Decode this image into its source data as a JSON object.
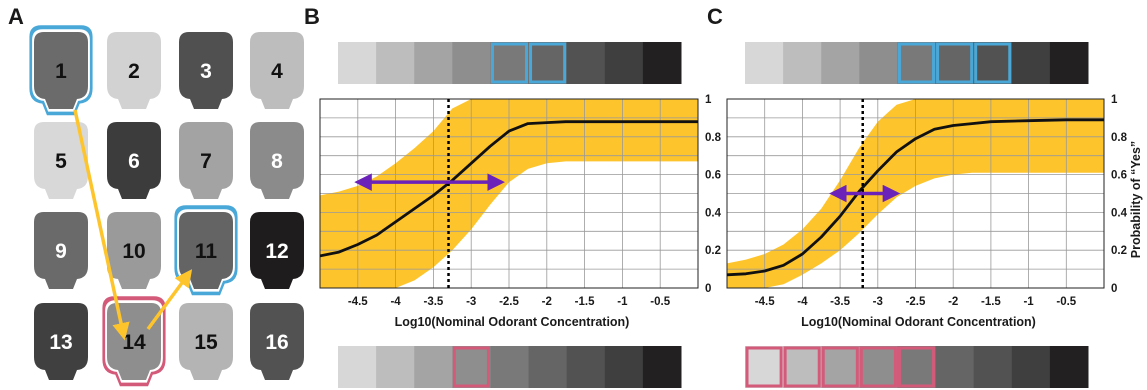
{
  "panels": {
    "a": "A",
    "b": "B",
    "c": "C"
  },
  "heads": [
    {
      "label": "1",
      "fill": "#6b6b6b",
      "text": "#111111",
      "outline": "#4aa8d8"
    },
    {
      "label": "2",
      "fill": "#d2d2d2",
      "text": "#111111",
      "outline": ""
    },
    {
      "label": "3",
      "fill": "#505050",
      "text": "#ffffff",
      "outline": ""
    },
    {
      "label": "4",
      "fill": "#bdbdbd",
      "text": "#111111",
      "outline": ""
    },
    {
      "label": "5",
      "fill": "#d8d8d8",
      "text": "#111111",
      "outline": ""
    },
    {
      "label": "6",
      "fill": "#3c3c3c",
      "text": "#ffffff",
      "outline": ""
    },
    {
      "label": "7",
      "fill": "#a3a3a3",
      "text": "#111111",
      "outline": ""
    },
    {
      "label": "8",
      "fill": "#8b8b8b",
      "text": "#ffffff",
      "outline": ""
    },
    {
      "label": "9",
      "fill": "#6a6a6a",
      "text": "#ffffff",
      "outline": ""
    },
    {
      "label": "10",
      "fill": "#9a9a9a",
      "text": "#111111",
      "outline": ""
    },
    {
      "label": "11",
      "fill": "#646464",
      "text": "#111111",
      "outline": "#4aa8d8"
    },
    {
      "label": "12",
      "fill": "#1e1c1c",
      "text": "#ffffff",
      "outline": ""
    },
    {
      "label": "13",
      "fill": "#404040",
      "text": "#ffffff",
      "outline": ""
    },
    {
      "label": "14",
      "fill": "#8e8e8e",
      "text": "#111111",
      "outline": "#d45a7a"
    },
    {
      "label": "15",
      "fill": "#b4b4b4",
      "text": "#111111",
      "outline": ""
    },
    {
      "label": "16",
      "fill": "#525252",
      "text": "#ffffff",
      "outline": ""
    }
  ],
  "arrow_path_heads": [
    "1",
    "14",
    "11"
  ],
  "colors": {
    "band": "#fec42b",
    "curve": "#111111",
    "arrow": "#6a22b8",
    "path_arrow": "#fec42b",
    "blue_box": "#4aa8d8",
    "pink_box": "#d45a7a",
    "grid": "#999999"
  },
  "gray_scale": [
    "#d7d7d7",
    "#bdbdbd",
    "#a4a4a4",
    "#8e8e8e",
    "#797979",
    "#656565",
    "#525252",
    "#3f3f3f",
    "#222020"
  ],
  "chart_data": [
    {
      "panel": "B",
      "type": "line",
      "xlabel": "Log10(Nominal Odorant Concentration)",
      "ylabel": "",
      "xlim": [
        -5.0,
        0.0
      ],
      "ylim": [
        0,
        1
      ],
      "x_ticks": [
        "-4.5",
        "-4",
        "-3.5",
        "-3",
        "-2.5",
        "-2",
        "-1.5",
        "-1",
        "-0.5"
      ],
      "y_ticks": [
        "0",
        "0.2",
        "0.4",
        "0.6",
        "0.8",
        "1"
      ],
      "grid": true,
      "curve": {
        "x": [
          -5.0,
          -4.75,
          -4.5,
          -4.25,
          -4.0,
          -3.75,
          -3.5,
          -3.25,
          -3.0,
          -2.75,
          -2.5,
          -2.25,
          -2.0,
          -1.75,
          -1.5,
          -1.0,
          -0.5,
          0.0
        ],
        "y": [
          0.17,
          0.19,
          0.23,
          0.28,
          0.35,
          0.42,
          0.49,
          0.57,
          0.66,
          0.75,
          0.83,
          0.87,
          0.875,
          0.88,
          0.88,
          0.88,
          0.88,
          0.88
        ]
      },
      "band_upper": [
        0.49,
        0.51,
        0.54,
        0.59,
        0.66,
        0.74,
        0.83,
        0.95,
        1.0,
        1.0,
        1.0,
        1.0,
        1.0,
        1.0,
        1.0,
        1.0,
        1.0,
        1.0
      ],
      "band_lower": [
        0.0,
        0.0,
        0.0,
        0.0,
        0.0,
        0.04,
        0.11,
        0.2,
        0.31,
        0.44,
        0.56,
        0.63,
        0.66,
        0.67,
        0.67,
        0.67,
        0.67,
        0.67
      ],
      "threshold_x": -3.3,
      "interval": {
        "from": -4.5,
        "to": -2.6,
        "y": 0.56
      },
      "top_boxes": [
        4,
        5
      ],
      "bottom_boxes": [
        3
      ]
    },
    {
      "panel": "C",
      "type": "line",
      "xlabel": "Log10(Nominal Odorant Concentration)",
      "ylabel": "Probability of “Yes”",
      "xlim": [
        -5.0,
        0.0
      ],
      "ylim": [
        0,
        1
      ],
      "x_ticks": [
        "-4.5",
        "-4",
        "-3.5",
        "-3",
        "-2.5",
        "-2",
        "-1.5",
        "-1",
        "-0.5"
      ],
      "y_ticks": [
        "0",
        "0.2",
        "0.4",
        "0.6",
        "0.8",
        "1"
      ],
      "grid": true,
      "curve": {
        "x": [
          -5.0,
          -4.75,
          -4.5,
          -4.25,
          -4.0,
          -3.75,
          -3.5,
          -3.25,
          -3.0,
          -2.75,
          -2.5,
          -2.25,
          -2.0,
          -1.75,
          -1.5,
          -1.0,
          -0.5,
          0.0
        ],
        "y": [
          0.07,
          0.075,
          0.09,
          0.12,
          0.18,
          0.27,
          0.38,
          0.51,
          0.62,
          0.72,
          0.79,
          0.84,
          0.86,
          0.87,
          0.88,
          0.885,
          0.89,
          0.89
        ]
      },
      "band_upper": [
        0.13,
        0.15,
        0.18,
        0.23,
        0.31,
        0.42,
        0.57,
        0.74,
        0.88,
        0.97,
        1.0,
        1.0,
        1.0,
        1.0,
        1.0,
        1.0,
        1.0,
        1.0
      ],
      "band_lower": [
        0.0,
        0.0,
        0.0,
        0.02,
        0.07,
        0.13,
        0.2,
        0.29,
        0.39,
        0.48,
        0.54,
        0.58,
        0.6,
        0.61,
        0.61,
        0.61,
        0.61,
        0.61
      ],
      "threshold_x": -3.2,
      "interval": {
        "from": -3.6,
        "to": -2.75,
        "y": 0.5
      },
      "top_boxes": [
        4,
        5,
        6
      ],
      "bottom_boxes": [
        0,
        1,
        2,
        3,
        4
      ]
    }
  ]
}
